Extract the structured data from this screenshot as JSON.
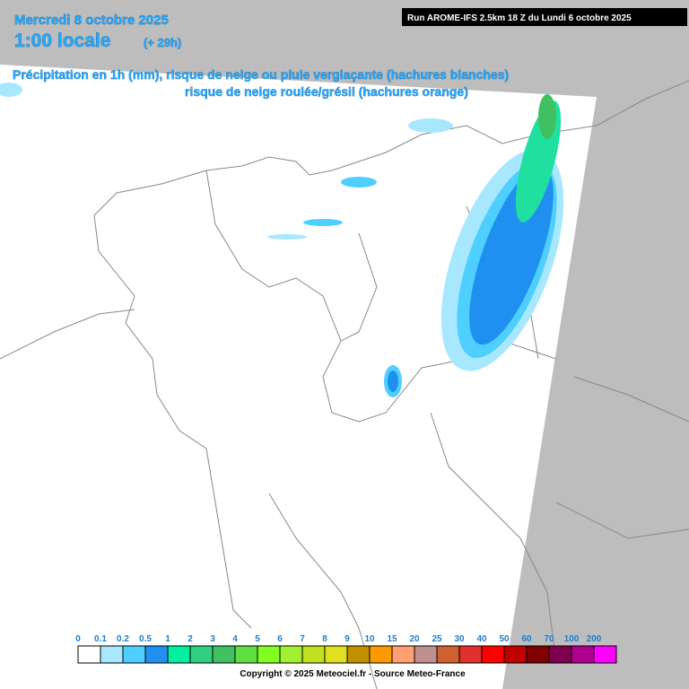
{
  "header": {
    "date": "Mercredi 8 octobre 2025",
    "time": "1:00 locale",
    "offset": "(+ 29h)",
    "run": "Run AROME-IFS 2.5km 18 Z du Lundi 6 octobre 2025"
  },
  "description": {
    "line1": "Précipitation en 1h (mm), risque de neige ou pluie verglaçante (hachures blanches)",
    "line2": "risque de neige roulée/grésil (hachures orange)"
  },
  "legend": {
    "items": [
      {
        "label": 0,
        "color": "#ffffff"
      },
      {
        "label": 0.1,
        "color": "#a8e8ff"
      },
      {
        "label": 0.2,
        "color": "#4fcfff"
      },
      {
        "label": 0.5,
        "color": "#2090f0"
      },
      {
        "label": 1,
        "color": "#00f0a0"
      },
      {
        "label": 2,
        "color": "#30d080"
      },
      {
        "label": 3,
        "color": "#40c060"
      },
      {
        "label": 4,
        "color": "#60e040"
      },
      {
        "label": 5,
        "color": "#80ff20"
      },
      {
        "label": 6,
        "color": "#a0f030"
      },
      {
        "label": 7,
        "color": "#c0e020"
      },
      {
        "label": 8,
        "color": "#e0e020"
      },
      {
        "label": 9,
        "color": "#c09000"
      },
      {
        "label": 10,
        "color": "#ff9900"
      },
      {
        "label": 15,
        "color": "#ffa070"
      },
      {
        "label": 20,
        "color": "#c09090"
      },
      {
        "label": 25,
        "color": "#d06030"
      },
      {
        "label": 30,
        "color": "#e03030"
      },
      {
        "label": 40,
        "color": "#ff0000"
      },
      {
        "label": 50,
        "color": "#c00000"
      },
      {
        "label": 60,
        "color": "#800000"
      },
      {
        "label": 70,
        "color": "#800050"
      },
      {
        "label": 100,
        "color": "#b00090"
      },
      {
        "label": 200,
        "color": "#ff00ff"
      }
    ]
  },
  "footer": {
    "copyright": "Copyright © 2025 Meteociel.fr - Source Meteo-France"
  }
}
